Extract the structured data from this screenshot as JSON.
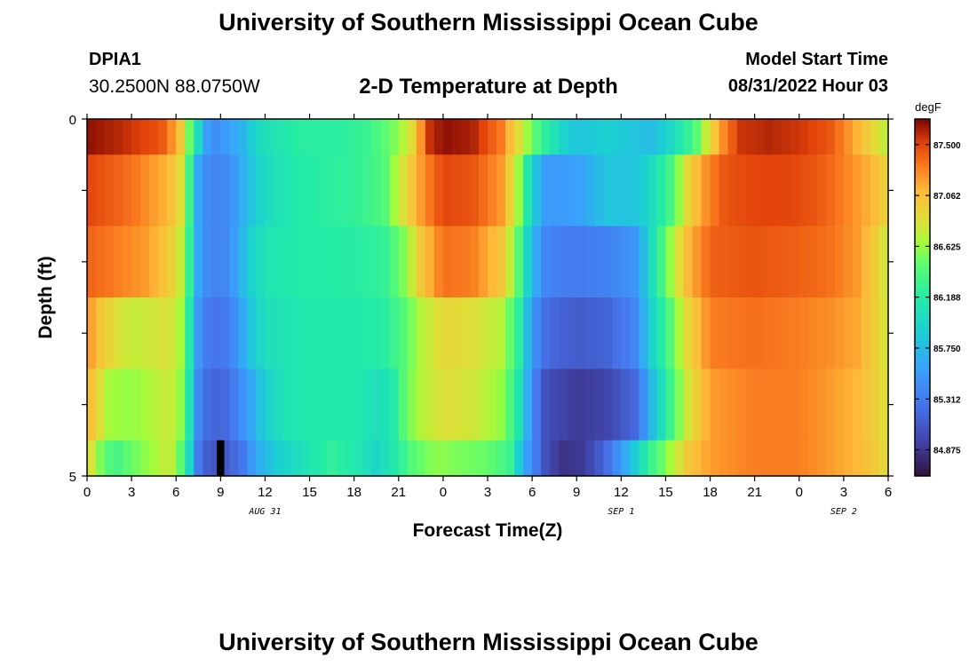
{
  "header": {
    "title": "University of Southern Mississippi Ocean Cube",
    "station_id": "DPIA1",
    "coords": "30.2500N  88.0750W",
    "chart_title": "2-D Temperature at Depth",
    "start_label": "Model Start Time",
    "start_value": "08/31/2022 Hour 03"
  },
  "footer": {
    "title": "University of Southern Mississippi Ocean Cube"
  },
  "chart_data": {
    "type": "heatmap",
    "xlabel": "Forecast Time(Z)",
    "ylabel": "Depth (ft)",
    "x_tick_labels": [
      "0",
      "3",
      "6",
      "9",
      "12",
      "15",
      "18",
      "21",
      "0",
      "3",
      "6",
      "9",
      "12",
      "15",
      "18",
      "21",
      "0",
      "3",
      "6"
    ],
    "date_labels": [
      {
        "label": "AUG 31",
        "tick_index": 4
      },
      {
        "label": "SEP 1",
        "tick_index": 12
      },
      {
        "label": "SEP 2",
        "tick_index": 17
      }
    ],
    "y_tick_labels": [
      "0",
      "5"
    ],
    "y_range": [
      0,
      5
    ],
    "depth_rows": 5,
    "hours": 54,
    "time_step_hours": 0.6,
    "colorbar": {
      "unit": "degF",
      "ticks": [
        "87.500",
        "87.062",
        "86.625",
        "86.188",
        "85.750",
        "85.312",
        "84.875"
      ],
      "range": [
        84.65,
        87.72
      ]
    },
    "profiles": [
      [
        [
          0,
          87.68
        ],
        [
          2,
          87.6
        ],
        [
          5,
          87.45
        ],
        [
          6.2,
          87.1
        ],
        [
          6.8,
          86.6
        ],
        [
          7.5,
          86.0
        ],
        [
          8.3,
          85.4
        ],
        [
          9.5,
          85.55
        ],
        [
          10.5,
          85.7
        ],
        [
          11.5,
          86.0
        ],
        [
          14,
          86.2
        ],
        [
          17,
          86.22
        ],
        [
          19,
          86.3
        ],
        [
          21,
          86.6
        ],
        [
          22,
          86.9
        ],
        [
          23,
          87.55
        ],
        [
          24,
          87.68
        ],
        [
          26,
          87.62
        ],
        [
          28,
          87.3
        ],
        [
          29,
          86.9
        ],
        [
          30,
          86.5
        ],
        [
          31,
          86.2
        ],
        [
          32,
          85.95
        ],
        [
          33,
          85.8
        ],
        [
          35,
          85.9
        ],
        [
          38,
          85.75
        ],
        [
          39.5,
          86.0
        ],
        [
          41,
          86.4
        ],
        [
          42,
          86.9
        ],
        [
          43,
          87.3
        ],
        [
          44,
          87.55
        ],
        [
          46,
          87.6
        ],
        [
          48,
          87.55
        ],
        [
          50,
          87.45
        ],
        [
          51.5,
          87.2
        ],
        [
          53,
          86.9
        ],
        [
          54,
          86.7
        ]
      ],
      [
        [
          0,
          87.5
        ],
        [
          3,
          87.35
        ],
        [
          5.5,
          87.1
        ],
        [
          6.5,
          86.8
        ],
        [
          7.5,
          85.6
        ],
        [
          8.3,
          85.35
        ],
        [
          9.5,
          85.4
        ],
        [
          11,
          85.8
        ],
        [
          12,
          86.0
        ],
        [
          14,
          86.15
        ],
        [
          16,
          86.22
        ],
        [
          18,
          86.25
        ],
        [
          20,
          86.4
        ],
        [
          21.5,
          86.9
        ],
        [
          22.5,
          87.2
        ],
        [
          24,
          87.5
        ],
        [
          26,
          87.45
        ],
        [
          28,
          87.2
        ],
        [
          29,
          86.7
        ],
        [
          30,
          85.9
        ],
        [
          31,
          85.5
        ],
        [
          33,
          85.55
        ],
        [
          35,
          85.8
        ],
        [
          37,
          85.8
        ],
        [
          38,
          86.0
        ],
        [
          39.5,
          86.4
        ],
        [
          40.5,
          86.9
        ],
        [
          41.5,
          87.2
        ],
        [
          43,
          87.45
        ],
        [
          45,
          87.5
        ],
        [
          47,
          87.5
        ],
        [
          49,
          87.45
        ],
        [
          51,
          87.3
        ],
        [
          53,
          87.1
        ],
        [
          54,
          86.9
        ]
      ],
      [
        [
          0,
          87.4
        ],
        [
          2,
          87.3
        ],
        [
          4,
          87.2
        ],
        [
          5.5,
          87.0
        ],
        [
          6.5,
          86.7
        ],
        [
          7.5,
          85.6
        ],
        [
          8.3,
          85.35
        ],
        [
          9.5,
          85.4
        ],
        [
          11,
          85.9
        ],
        [
          12,
          86.1
        ],
        [
          15,
          86.18
        ],
        [
          18,
          86.2
        ],
        [
          20,
          86.25
        ],
        [
          21.5,
          86.6
        ],
        [
          22.5,
          87.0
        ],
        [
          24,
          87.35
        ],
        [
          26,
          87.3
        ],
        [
          28,
          87.0
        ],
        [
          29,
          86.5
        ],
        [
          30,
          85.7
        ],
        [
          31,
          85.35
        ],
        [
          33,
          85.3
        ],
        [
          35,
          85.35
        ],
        [
          37,
          85.5
        ],
        [
          38,
          86.0
        ],
        [
          39.5,
          86.7
        ],
        [
          40.5,
          87.1
        ],
        [
          42,
          87.4
        ],
        [
          45,
          87.45
        ],
        [
          48,
          87.4
        ],
        [
          50,
          87.35
        ],
        [
          52,
          87.2
        ],
        [
          53.5,
          86.9
        ],
        [
          54,
          86.7
        ]
      ],
      [
        [
          0,
          87.25
        ],
        [
          1,
          87.0
        ],
        [
          2,
          86.85
        ],
        [
          3,
          86.75
        ],
        [
          4.5,
          86.8
        ],
        [
          5.5,
          86.85
        ],
        [
          6.5,
          86.6
        ],
        [
          7.5,
          85.5
        ],
        [
          8.3,
          85.25
        ],
        [
          9.5,
          85.3
        ],
        [
          11,
          85.8
        ],
        [
          12,
          86.05
        ],
        [
          15,
          86.15
        ],
        [
          18,
          86.15
        ],
        [
          20,
          86.2
        ],
        [
          21.5,
          86.45
        ],
        [
          22.5,
          86.7
        ],
        [
          24,
          86.9
        ],
        [
          26,
          86.85
        ],
        [
          28,
          86.7
        ],
        [
          29,
          86.3
        ],
        [
          30,
          85.5
        ],
        [
          31,
          85.2
        ],
        [
          33,
          85.1
        ],
        [
          35,
          85.15
        ],
        [
          37,
          85.4
        ],
        [
          38,
          85.9
        ],
        [
          39.5,
          86.5
        ],
        [
          40.5,
          86.9
        ],
        [
          42,
          87.3
        ],
        [
          45,
          87.35
        ],
        [
          48,
          87.3
        ],
        [
          50,
          87.25
        ],
        [
          52,
          87.15
        ],
        [
          53.5,
          86.9
        ],
        [
          54,
          86.75
        ]
      ],
      [
        [
          0,
          87.15
        ],
        [
          0.7,
          86.9
        ],
        [
          1.5,
          86.65
        ],
        [
          3,
          86.6
        ],
        [
          4.5,
          86.7
        ],
        [
          5.5,
          86.8
        ],
        [
          6.5,
          86.55
        ],
        [
          7.5,
          85.4
        ],
        [
          8.3,
          85.15
        ],
        [
          9.5,
          85.2
        ],
        [
          11,
          85.6
        ],
        [
          12,
          85.9
        ],
        [
          13.5,
          86.1
        ],
        [
          15,
          86.15
        ],
        [
          18,
          86.15
        ],
        [
          19.5,
          86.05
        ],
        [
          20.5,
          86.1
        ],
        [
          21.5,
          86.5
        ],
        [
          22.5,
          86.7
        ],
        [
          24,
          86.85
        ],
        [
          26,
          86.8
        ],
        [
          28,
          86.6
        ],
        [
          29,
          86.2
        ],
        [
          30,
          85.4
        ],
        [
          31,
          85.0
        ],
        [
          33,
          84.9
        ],
        [
          35,
          84.95
        ],
        [
          37,
          85.2
        ],
        [
          38,
          85.7
        ],
        [
          39.5,
          86.4
        ],
        [
          40.5,
          86.8
        ],
        [
          42,
          87.2
        ],
        [
          45,
          87.3
        ],
        [
          48,
          87.3
        ],
        [
          50,
          87.2
        ],
        [
          52,
          87.1
        ],
        [
          53.5,
          86.9
        ],
        [
          54,
          86.8
        ]
      ],
      [
        [
          0,
          87.0
        ],
        [
          0.5,
          86.7
        ],
        [
          1.2,
          86.45
        ],
        [
          2,
          86.35
        ],
        [
          3,
          86.5
        ],
        [
          4.5,
          86.65
        ],
        [
          5.5,
          86.8
        ],
        [
          6.5,
          86.4
        ],
        [
          7.5,
          85.3
        ],
        [
          8.3,
          85.05
        ],
        [
          9.5,
          85.1
        ],
        [
          10.5,
          85.3
        ],
        [
          11.5,
          85.65
        ],
        [
          13,
          85.9
        ],
        [
          15,
          86.1
        ],
        [
          16.5,
          86.25
        ],
        [
          18,
          86.15
        ],
        [
          19.5,
          85.95
        ],
        [
          21,
          86.2
        ],
        [
          22,
          86.45
        ],
        [
          23.5,
          86.6
        ],
        [
          25,
          86.55
        ],
        [
          27,
          86.5
        ],
        [
          28.5,
          86.3
        ],
        [
          29.5,
          85.6
        ],
        [
          31,
          85.0
        ],
        [
          32,
          84.85
        ],
        [
          33.5,
          84.9
        ],
        [
          35,
          85.2
        ],
        [
          36.5,
          85.7
        ],
        [
          38,
          86.3
        ],
        [
          39.5,
          86.7
        ],
        [
          40.5,
          87.0
        ],
        [
          42,
          87.2
        ],
        [
          45,
          87.3
        ],
        [
          48,
          87.3
        ],
        [
          50,
          87.2
        ],
        [
          52,
          87.1
        ],
        [
          53.5,
          86.95
        ],
        [
          54,
          86.85
        ]
      ]
    ],
    "missing_cell": {
      "hour": 9.0,
      "depth_row": 4
    }
  }
}
